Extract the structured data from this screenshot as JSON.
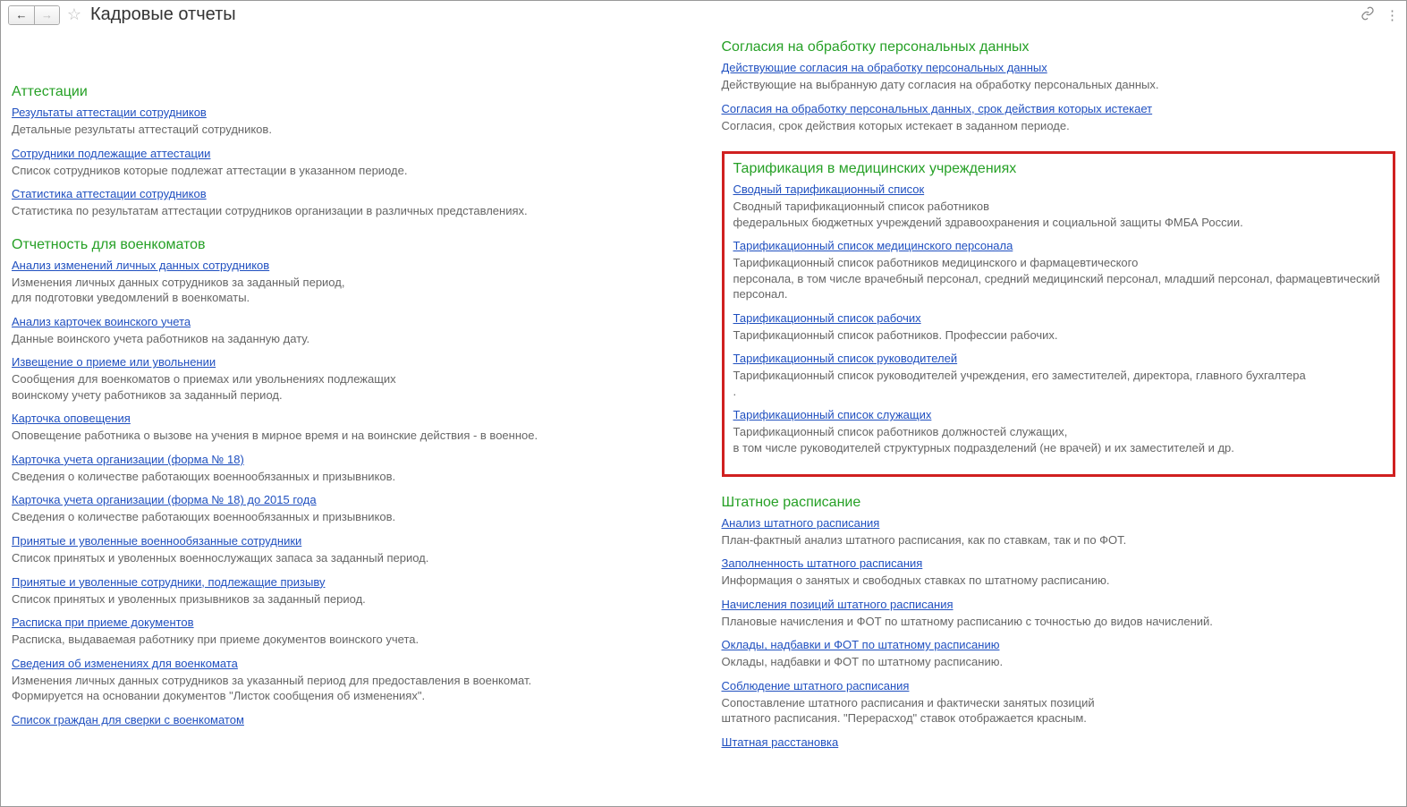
{
  "header": {
    "title": "Кадровые отчеты"
  },
  "leftColumn": {
    "sections": [
      {
        "title": "Аттестации",
        "items": [
          {
            "link": "Результаты аттестации сотрудников",
            "desc": "Детальные результаты аттестаций сотрудников."
          },
          {
            "link": "Сотрудники подлежащие аттестации",
            "desc": "Список сотрудников которые подлежат аттестации в указанном периоде."
          },
          {
            "link": "Статистика аттестации сотрудников",
            "desc": "Статистика по результатам аттестации сотрудников организации в различных представлениях."
          }
        ]
      },
      {
        "title": "Отчетность для военкоматов",
        "items": [
          {
            "link": "Анализ изменений личных данных сотрудников",
            "desc": "Изменения личных данных сотрудников за заданный период,\nдля подготовки уведомлений в военкоматы."
          },
          {
            "link": "Анализ карточек воинского учета",
            "desc": "Данные воинского учета работников на заданную дату."
          },
          {
            "link": "Извещение о приеме или увольнении",
            "desc": "Сообщения для военкоматов о приемах или увольнениях подлежащих\nвоинскому учету работников за заданный период."
          },
          {
            "link": "Карточка оповещения",
            "desc": "Оповещение работника о вызове на учения в мирное время и на воинские действия - в военное."
          },
          {
            "link": "Карточка учета организации (форма № 18)",
            "desc": "Сведения о количестве работающих военнообязанных и призывников."
          },
          {
            "link": "Карточка учета организации (форма № 18) до 2015 года",
            "desc": "Сведения о количестве работающих военнообязанных и призывников."
          },
          {
            "link": "Принятые и уволенные военнообязанные сотрудники",
            "desc": "Список принятых и уволенных военнослужащих запаса за заданный период."
          },
          {
            "link": "Принятые и уволенные сотрудники, подлежащие призыву",
            "desc": "Список принятых и уволенных призывников за заданный период."
          },
          {
            "link": "Расписка при приеме документов",
            "desc": "Расписка, выдаваемая работнику при приеме документов воинского учета."
          },
          {
            "link": "Сведения об изменениях для военкомата",
            "desc": "Изменения личных данных сотрудников за указанный период для предоставления в военкомат.\nФормируется на основании документов \"Листок сообщения об изменениях\"."
          },
          {
            "link": "Список граждан для сверки с военкоматом",
            "desc": ""
          }
        ]
      }
    ]
  },
  "rightColumn": {
    "sections": [
      {
        "title": "Согласия на обработку персональных данных",
        "highlighted": false,
        "items": [
          {
            "link": "Действующие согласия на обработку персональных данных",
            "desc": "Действующие на выбранную дату согласия на обработку персональных данных."
          },
          {
            "link": "Согласия на обработку персональных данных, срок действия которых истекает",
            "desc": "Согласия, срок действия которых истекает в заданном периоде."
          }
        ]
      },
      {
        "title": "Тарификация в медицинских учреждениях",
        "highlighted": true,
        "items": [
          {
            "link": "Сводный тарификационный список",
            "desc": "Сводный тарификационный список работников\nфедеральных бюджетных учреждений здравоохранения и социальной защиты ФМБА России."
          },
          {
            "link": "Тарификационный список медицинского персонала",
            "desc": "Тарификационный список работников медицинского и фармацевтического\nперсонала, в том числе врачебный персонал, средний медицинский персонал, младший персонал, фармацевтический персонал."
          },
          {
            "link": "Тарификационный список рабочих",
            "desc": "Тарификационный список работников. Профессии рабочих."
          },
          {
            "link": "Тарификационный список руководителей",
            "desc": "Тарификационный список руководителей учреждения, его заместителей, директора, главного бухгалтера\n."
          },
          {
            "link": "Тарификационный список служащих",
            "desc": "Тарификационный список работников должностей служащих,\nв том числе руководителей структурных подразделений (не врачей) и их заместителей и др."
          }
        ]
      },
      {
        "title": "Штатное расписание",
        "highlighted": false,
        "items": [
          {
            "link": "Анализ штатного расписания",
            "desc": "План-фактный анализ штатного расписания, как по ставкам, так и по ФОТ."
          },
          {
            "link": "Заполненность штатного расписания",
            "desc": "Информация о занятых и свободных ставках по штатному расписанию."
          },
          {
            "link": "Начисления позиций штатного расписания",
            "desc": "Плановые начисления и ФОТ по штатному расписанию с точностью до видов начислений."
          },
          {
            "link": "Оклады, надбавки и ФОТ по штатному расписанию",
            "desc": "Оклады, надбавки и ФОТ по штатному расписанию."
          },
          {
            "link": "Соблюдение штатного расписания",
            "desc": "Сопоставление штатного расписания и фактически занятых позиций\nштатного расписания. \"Перерасход\" ставок отображается красным."
          },
          {
            "link": "Штатная расстановка",
            "desc": ""
          }
        ]
      }
    ]
  }
}
